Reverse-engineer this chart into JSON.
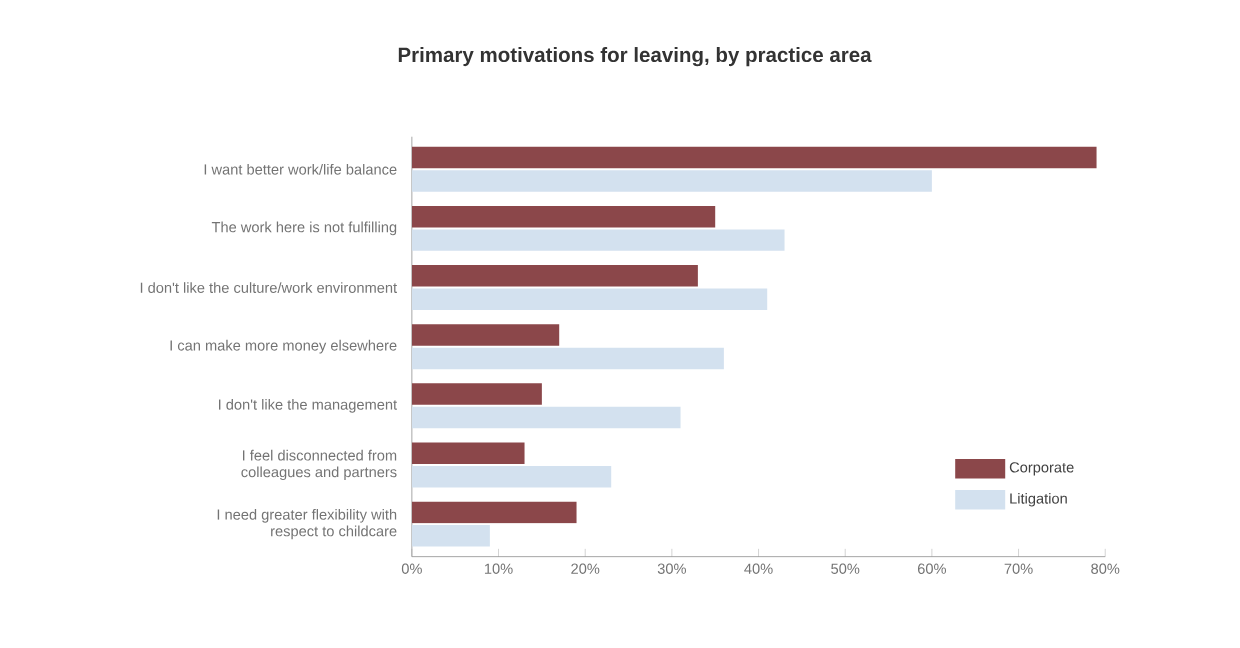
{
  "chart_data": {
    "type": "bar",
    "orientation": "horizontal",
    "title": "Primary motivations for leaving, by practice area",
    "categories": [
      "I want better work/life balance",
      "The work here is not fulfilling",
      "I don't like the culture/work environment",
      "I can make more money elsewhere",
      "I don't like the management",
      "I feel disconnected from colleagues and partners",
      "I need greater flexibility with respect to childcare"
    ],
    "series": [
      {
        "name": "Corporate",
        "color": "#8b474a",
        "values": [
          79,
          35,
          33,
          17,
          15,
          13,
          19
        ]
      },
      {
        "name": "Litigation",
        "color": "#d3e1ef",
        "values": [
          60,
          43,
          41,
          36,
          31,
          23,
          9
        ]
      }
    ],
    "xlim": [
      0,
      80
    ],
    "xticks": [
      {
        "value": 0,
        "label": "0%"
      },
      {
        "value": 10,
        "label": "10%"
      },
      {
        "value": 20,
        "label": "20%"
      },
      {
        "value": 30,
        "label": "30%"
      },
      {
        "value": 40,
        "label": "40%"
      },
      {
        "value": 50,
        "label": "50%"
      },
      {
        "value": 60,
        "label": "60%"
      },
      {
        "value": 70,
        "label": "70%"
      },
      {
        "value": 80,
        "label": "80%"
      }
    ],
    "legend": "bottom right",
    "grid": false
  }
}
